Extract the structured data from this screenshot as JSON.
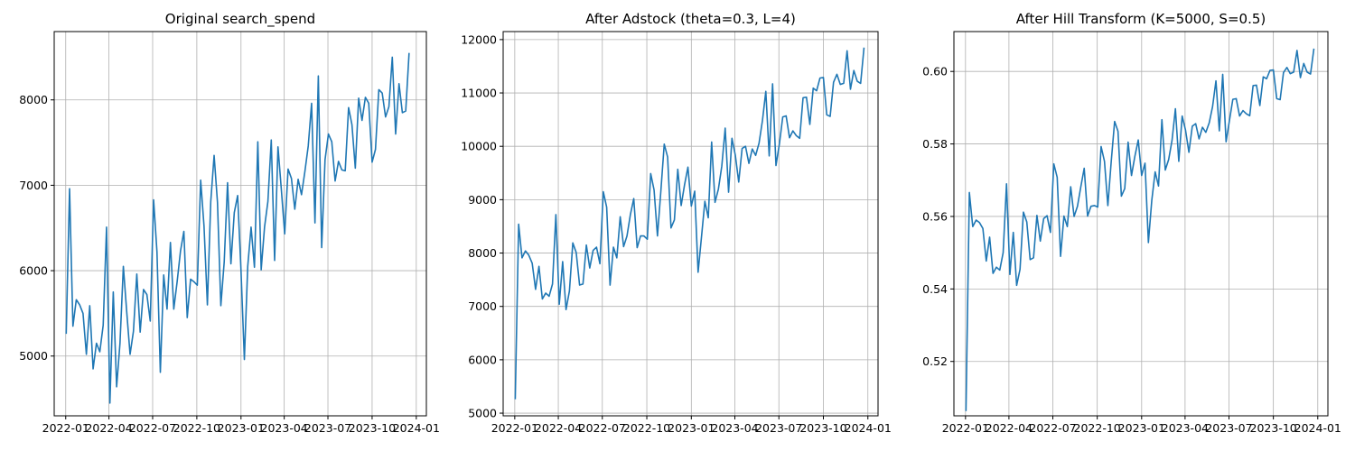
{
  "chart_data": [
    {
      "type": "line",
      "title": "Original search_spend",
      "xlabel": "",
      "ylabel": "",
      "grid": true,
      "x_ticks": [
        "2022-01",
        "2022-04",
        "2022-07",
        "2022-10",
        "2023-01",
        "2023-04",
        "2023-07",
        "2023-10",
        "2024-01"
      ],
      "y_ticks": [
        "5000",
        "6000",
        "7000",
        "8000"
      ],
      "y_tick_values": [
        5000,
        6000,
        7000,
        8000
      ],
      "ylim": [
        4300,
        8800
      ],
      "color": "#1f77b4",
      "start_date": "2022-01-02",
      "interval_days": 7,
      "values": [
        5260,
        6960,
        5350,
        5660,
        5600,
        5500,
        5020,
        5590,
        4850,
        5150,
        5050,
        5360,
        6510,
        4450,
        5750,
        4640,
        5150,
        6050,
        5520,
        5020,
        5290,
        5960,
        5280,
        5780,
        5720,
        5410,
        6830,
        6220,
        4810,
        5950,
        5550,
        6330,
        5550,
        5870,
        6230,
        6460,
        5450,
        5900,
        5870,
        5830,
        7060,
        6520,
        5600,
        6810,
        7350,
        6800,
        5590,
        6100,
        7030,
        6080,
        6680,
        6880,
        6000,
        4960,
        6050,
        6510,
        6040,
        7510,
        6010,
        6510,
        6810,
        7530,
        6120,
        7450,
        6950,
        6430,
        7190,
        7080,
        6720,
        7070,
        6890,
        7160,
        7460,
        7960,
        6560,
        8280,
        6270,
        7300,
        7600,
        7510,
        7050,
        7280,
        7180,
        7170,
        7910,
        7710,
        7200,
        8020,
        7760,
        8030,
        7960,
        7270,
        7420,
        8120,
        8080,
        7800,
        7920,
        8500,
        7600,
        8190,
        7850,
        7870,
        8550
      ]
    },
    {
      "type": "line",
      "title": "After Adstock (theta=0.3, L=4)",
      "xlabel": "",
      "ylabel": "",
      "grid": true,
      "x_ticks": [
        "2022-01",
        "2022-04",
        "2022-07",
        "2022-10",
        "2023-01",
        "2023-04",
        "2023-07",
        "2023-10",
        "2024-01"
      ],
      "y_ticks": [
        "5000",
        "6000",
        "7000",
        "8000",
        "9000",
        "10000",
        "11000",
        "12000"
      ],
      "y_tick_values": [
        5000,
        6000,
        7000,
        8000,
        9000,
        10000,
        11000,
        12000
      ],
      "ylim": [
        4950,
        12150
      ],
      "color": "#1f77b4",
      "start_date": "2022-01-02",
      "interval_days": 7,
      "values": [
        5260,
        8540,
        7910,
        8040,
        7960,
        7810,
        7320,
        7750,
        7140,
        7250,
        7190,
        7420,
        8720,
        7040,
        7840,
        6940,
        7290,
        8190,
        8010,
        7400,
        7420,
        8150,
        7720,
        8050,
        8110,
        7800,
        9150,
        8860,
        7400,
        8110,
        7910,
        8680,
        8120,
        8320,
        8720,
        9020,
        8100,
        8320,
        8320,
        8260,
        9490,
        9180,
        8320,
        9160,
        10040,
        9800,
        8470,
        8620,
        9570,
        8890,
        9280,
        9610,
        8880,
        9160,
        7640,
        8300,
        8970,
        8660,
        10080,
        8950,
        9200,
        9630,
        10340,
        9140,
        10150,
        9830,
        9330,
        9960,
        10000,
        9680,
        9950,
        9830,
        10060,
        10480,
        11030,
        9820,
        11170,
        9640,
        10040,
        10550,
        10570,
        10160,
        10290,
        10200,
        10150,
        10910,
        10920,
        10410,
        11090,
        11040,
        11280,
        11290,
        10590,
        10560,
        11200,
        11350,
        11160,
        11180,
        11790,
        11070,
        11420,
        11220,
        11180,
        11850
      ]
    },
    {
      "type": "line",
      "title": "After Hill Transform (K=5000, S=0.5)",
      "xlabel": "",
      "ylabel": "",
      "grid": true,
      "x_ticks": [
        "2022-01",
        "2022-04",
        "2022-07",
        "2022-10",
        "2023-01",
        "2023-04",
        "2023-07",
        "2023-10",
        "2024-01"
      ],
      "y_ticks": [
        "0.52",
        "0.54",
        "0.56",
        "0.58",
        "0.60"
      ],
      "y_tick_values": [
        0.52,
        0.54,
        0.56,
        0.58,
        0.6
      ],
      "ylim": [
        0.505,
        0.611
      ],
      "color": "#1f77b4",
      "start_date": "2022-01-02",
      "interval_days": 7,
      "values": [
        0.5063,
        0.5666,
        0.5572,
        0.559,
        0.5583,
        0.5567,
        0.5477,
        0.5543,
        0.5443,
        0.546,
        0.5452,
        0.55,
        0.569,
        0.544,
        0.5556,
        0.541,
        0.5454,
        0.5612,
        0.5585,
        0.5481,
        0.5486,
        0.5603,
        0.5532,
        0.5594,
        0.5602,
        0.5556,
        0.5745,
        0.5708,
        0.549,
        0.5601,
        0.5572,
        0.5682,
        0.56,
        0.5628,
        0.5682,
        0.5733,
        0.5601,
        0.5628,
        0.563,
        0.5626,
        0.5793,
        0.5752,
        0.563,
        0.5752,
        0.5862,
        0.5835,
        0.5656,
        0.5677,
        0.5805,
        0.5713,
        0.5766,
        0.5811,
        0.5713,
        0.5747,
        0.5528,
        0.5644,
        0.5723,
        0.5684,
        0.5867,
        0.5728,
        0.5757,
        0.581,
        0.5897,
        0.5752,
        0.5877,
        0.5838,
        0.5777,
        0.5849,
        0.5856,
        0.5814,
        0.5846,
        0.5832,
        0.5858,
        0.5903,
        0.5974,
        0.5836,
        0.5992,
        0.5806,
        0.5865,
        0.5923,
        0.5925,
        0.5877,
        0.5892,
        0.5883,
        0.5878,
        0.5961,
        0.5962,
        0.5906,
        0.5985,
        0.598,
        0.6003,
        0.6004,
        0.5925,
        0.5922,
        0.5997,
        0.6011,
        0.5994,
        0.5998,
        0.6058,
        0.5983,
        0.6022,
        0.5998,
        0.5993,
        0.6063
      ]
    }
  ]
}
